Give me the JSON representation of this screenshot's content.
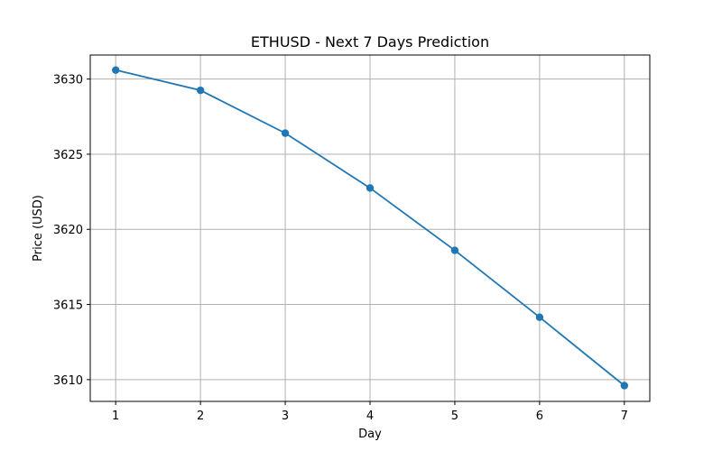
{
  "chart_data": {
    "type": "line",
    "title": "ETHUSD - Next 7 Days Prediction",
    "xlabel": "Day",
    "ylabel": "Price (USD)",
    "x": [
      1,
      2,
      3,
      4,
      5,
      6,
      7
    ],
    "series": [
      {
        "values": [
          3630.6,
          3629.25,
          3626.4,
          3622.75,
          3618.6,
          3614.15,
          3609.6
        ],
        "color": "#1f77b4",
        "marker": "circle"
      }
    ],
    "xticks": [
      1,
      2,
      3,
      4,
      5,
      6,
      7
    ],
    "yticks": [
      3610,
      3615,
      3620,
      3625,
      3630
    ],
    "xlim": [
      0.7,
      7.3
    ],
    "ylim": [
      3608.55,
      3631.6
    ],
    "grid": true
  }
}
